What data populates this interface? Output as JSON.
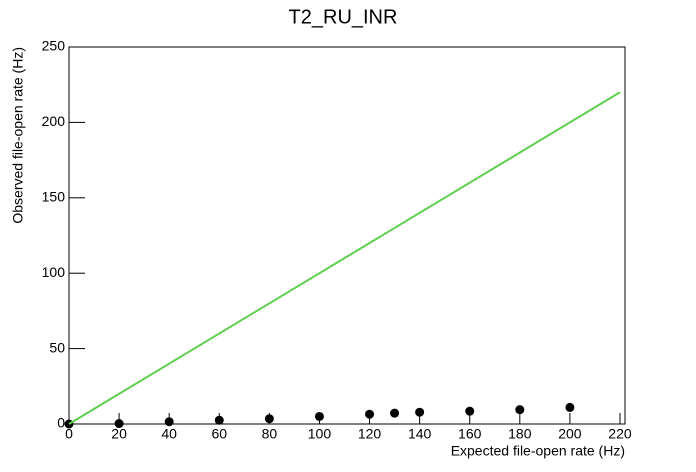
{
  "chart_data": {
    "type": "scatter",
    "title": "T2_RU_INR",
    "x_label": "Expected file-open rate (Hz)",
    "y_label": "Observed file-open rate (Hz)",
    "xlim": [
      0,
      222
    ],
    "ylim": [
      0,
      250
    ],
    "xticks": [
      0,
      20,
      40,
      60,
      80,
      100,
      120,
      140,
      160,
      180,
      200,
      220
    ],
    "yticks": [
      0,
      50,
      100,
      150,
      200,
      250
    ],
    "series": [
      {
        "type": "scatter",
        "color": "#000000",
        "x": [
          0,
          20,
          40,
          60,
          80,
          100,
          120,
          130,
          140,
          160,
          180,
          200
        ],
        "values": [
          0,
          0.3,
          1.5,
          2.5,
          3.5,
          5,
          6.5,
          7.2,
          7.8,
          8.5,
          9.5,
          11
        ]
      },
      {
        "type": "line",
        "color": "#5fcf4f",
        "x": [
          0,
          220
        ],
        "values": [
          0,
          220
        ]
      }
    ]
  }
}
